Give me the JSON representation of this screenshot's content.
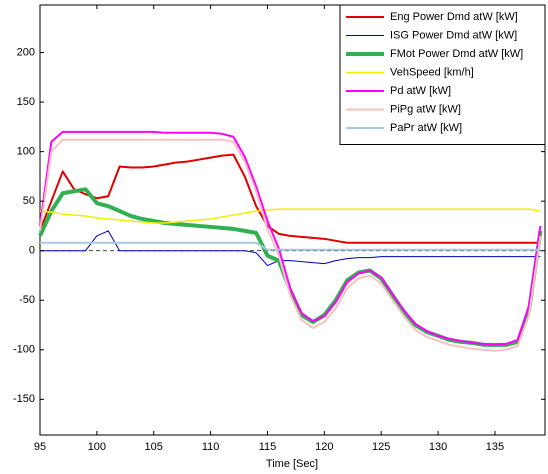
{
  "chart_data": {
    "type": "line",
    "xlabel": "Time [Sec]",
    "legend": "upper right",
    "grid": false,
    "xlim": [
      95,
      139.4
    ],
    "ylim": [
      -186,
      248
    ],
    "xticks": [
      95,
      100,
      105,
      110,
      115,
      120,
      125,
      130,
      135
    ],
    "yticks": [
      -150,
      -100,
      -50,
      0,
      50,
      100,
      150,
      200
    ],
    "x": [
      95,
      96,
      97,
      98,
      99,
      100,
      101,
      102,
      103,
      104,
      105,
      106,
      107,
      108,
      109,
      110,
      111,
      112,
      113,
      114,
      115,
      116,
      117,
      118,
      119,
      120,
      121,
      122,
      123,
      124,
      125,
      126,
      127,
      128,
      129,
      130,
      131,
      132,
      133,
      134,
      135,
      136,
      137,
      138,
      139
    ],
    "series": [
      {
        "name": "Eng Power Dmd atW [kW]",
        "color": "#e00000",
        "line_width": 2,
        "values": [
          20,
          50,
          80,
          62,
          57,
          53,
          55,
          85,
          84,
          84,
          85,
          87,
          89,
          90,
          92,
          94,
          96,
          97,
          75,
          45,
          25,
          17,
          15,
          14,
          13,
          12,
          10,
          8,
          8,
          8,
          8,
          8,
          8,
          8,
          8,
          8,
          8,
          8,
          8,
          8,
          8,
          8,
          8,
          8,
          8
        ]
      },
      {
        "name": "ISG Power Dmd atW [kW]",
        "color": "#0000c0",
        "line_width": 1,
        "values": [
          0,
          0,
          0,
          0,
          0,
          15,
          20,
          0,
          0,
          0,
          0,
          0,
          0,
          0,
          0,
          0,
          0,
          0,
          0,
          -2,
          -15,
          -10,
          -10,
          -11,
          -12,
          -13,
          -10,
          -8,
          -7,
          -7,
          -6,
          -6,
          -6,
          -6,
          -6,
          -6,
          -6,
          -6,
          -6,
          -6,
          -6,
          -6,
          -6,
          -6,
          -6
        ]
      },
      {
        "name": "FMot Power Dmd atW [kW]",
        "color": "#30b050",
        "line_width": 4,
        "values": [
          15,
          40,
          58,
          60,
          62,
          48,
          45,
          40,
          35,
          32,
          30,
          28,
          27,
          26,
          25,
          24,
          23,
          22,
          20,
          18,
          -5,
          -10,
          -40,
          -65,
          -72,
          -65,
          -50,
          -30,
          -22,
          -20,
          -28,
          -45,
          -62,
          -75,
          -82,
          -86,
          -90,
          -92,
          -93,
          -95,
          -95,
          -95,
          -92,
          -60,
          20
        ]
      },
      {
        "name": "VehSpeed [km/h]",
        "color": "#f0f000",
        "line_width": 1.5,
        "values": [
          40,
          39,
          37,
          36,
          35,
          33,
          32,
          31,
          30,
          29,
          28,
          28,
          29,
          30,
          31,
          32,
          34,
          36,
          38,
          40,
          41,
          42,
          42,
          42,
          42,
          42,
          42,
          42,
          42,
          42,
          42,
          42,
          42,
          42,
          42,
          42,
          42,
          42,
          42,
          42,
          42,
          42,
          42,
          42,
          40
        ]
      },
      {
        "name": "Pd atW [kW]",
        "color": "#ff00ff",
        "line_width": 2,
        "values": [
          25,
          110,
          120,
          120,
          120,
          120,
          120,
          120,
          120,
          120,
          120,
          119,
          119,
          119,
          119,
          119,
          118,
          115,
          95,
          65,
          30,
          2,
          -38,
          -63,
          -71,
          -66,
          -52,
          -32,
          -23,
          -20,
          -27,
          -44,
          -60,
          -74,
          -81,
          -86,
          -89,
          -91,
          -93,
          -94,
          -95,
          -94,
          -90,
          -55,
          25
        ]
      },
      {
        "name": "PiPg atW [kW]",
        "color": "#f8c0c0",
        "line_width": 2,
        "values": [
          20,
          100,
          112,
          112,
          112,
          112,
          112,
          112,
          112,
          112,
          112,
          112,
          112,
          112,
          112,
          112,
          112,
          110,
          90,
          60,
          22,
          -5,
          -45,
          -70,
          -78,
          -72,
          -58,
          -38,
          -28,
          -25,
          -33,
          -50,
          -66,
          -80,
          -87,
          -91,
          -95,
          -97,
          -99,
          -100,
          -101,
          -100,
          -96,
          -65,
          15
        ]
      },
      {
        "name": "PaPr atW [kW]",
        "color": "#a8c8e0",
        "line_width": 2,
        "values": [
          8,
          8,
          8,
          8,
          8,
          8,
          8,
          8,
          8,
          8,
          8,
          8,
          8,
          8,
          8,
          8,
          8,
          8,
          8,
          8,
          1,
          1,
          1,
          1,
          1,
          1,
          1,
          1,
          1,
          1,
          1,
          1,
          1,
          1,
          1,
          1,
          1,
          1,
          1,
          1,
          1,
          1,
          1,
          1,
          1
        ]
      }
    ]
  }
}
